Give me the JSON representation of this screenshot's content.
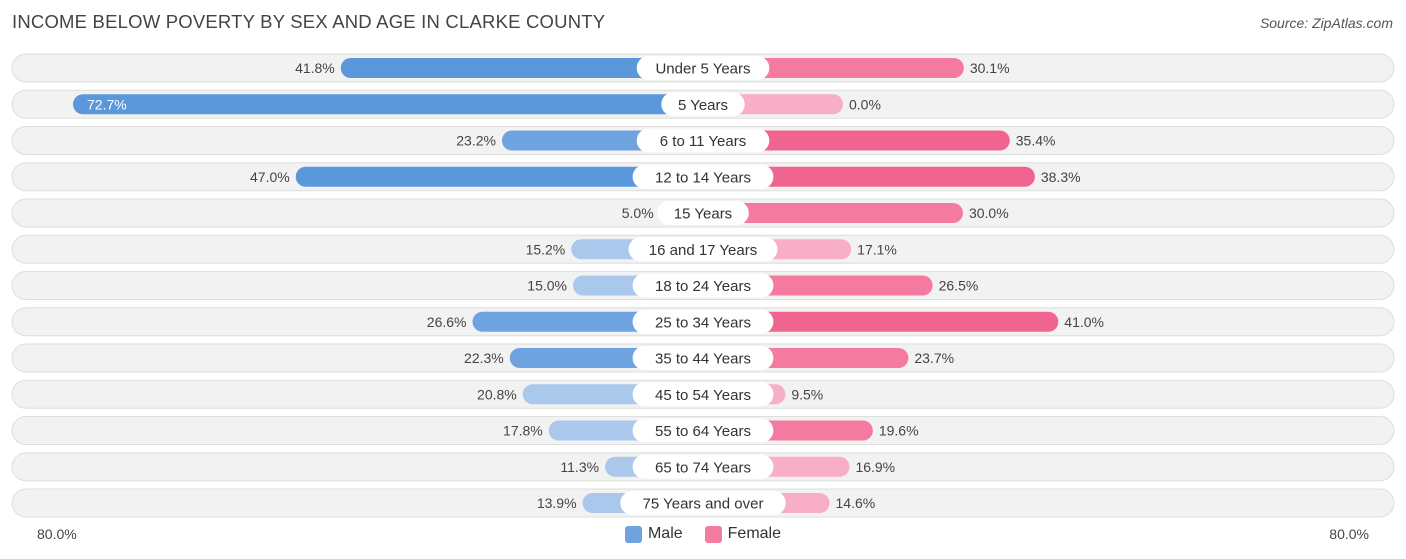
{
  "title": "INCOME BELOW POVERTY BY SEX AND AGE IN CLARKE COUNTY",
  "source": "Source: ZipAtlas.com",
  "colors": {
    "male": "#6fa3e0",
    "male_strong": "#5b98db",
    "male_light": "#a9c8ec",
    "female": "#f47aa0",
    "female_strong": "#f06590",
    "female_light": "#f7aec6"
  },
  "chart_data": {
    "type": "bar",
    "orientation": "horizontal-diverging",
    "title": "INCOME BELOW POVERTY BY SEX AND AGE IN CLARKE COUNTY",
    "categories": [
      "Under 5 Years",
      "5 Years",
      "6 to 11 Years",
      "12 to 14 Years",
      "15 Years",
      "16 and 17 Years",
      "18 to 24 Years",
      "25 to 34 Years",
      "35 to 44 Years",
      "45 to 54 Years",
      "55 to 64 Years",
      "65 to 74 Years",
      "75 Years and over"
    ],
    "series": [
      {
        "name": "Male",
        "values": [
          41.8,
          72.7,
          23.2,
          47.0,
          5.0,
          15.2,
          15.0,
          26.6,
          22.3,
          20.8,
          17.8,
          11.3,
          13.9
        ],
        "labels": [
          "41.8%",
          "72.7%",
          "23.2%",
          "47.0%",
          "5.0%",
          "15.2%",
          "15.0%",
          "26.6%",
          "22.3%",
          "20.8%",
          "17.8%",
          "11.3%",
          "13.9%"
        ]
      },
      {
        "name": "Female",
        "values": [
          30.1,
          0.0,
          35.4,
          38.3,
          30.0,
          17.1,
          26.5,
          41.0,
          23.7,
          9.5,
          19.6,
          16.9,
          14.6
        ],
        "labels": [
          "30.1%",
          "0.0%",
          "35.4%",
          "38.3%",
          "30.0%",
          "17.1%",
          "26.5%",
          "41.0%",
          "23.7%",
          "9.5%",
          "19.6%",
          "16.9%",
          "14.6%"
        ]
      }
    ],
    "xlim": [
      -80,
      80
    ],
    "axis_labels": {
      "left": "80.0%",
      "right": "80.0%"
    },
    "legend": [
      "Male",
      "Female"
    ],
    "legend_position": "bottom-center"
  }
}
